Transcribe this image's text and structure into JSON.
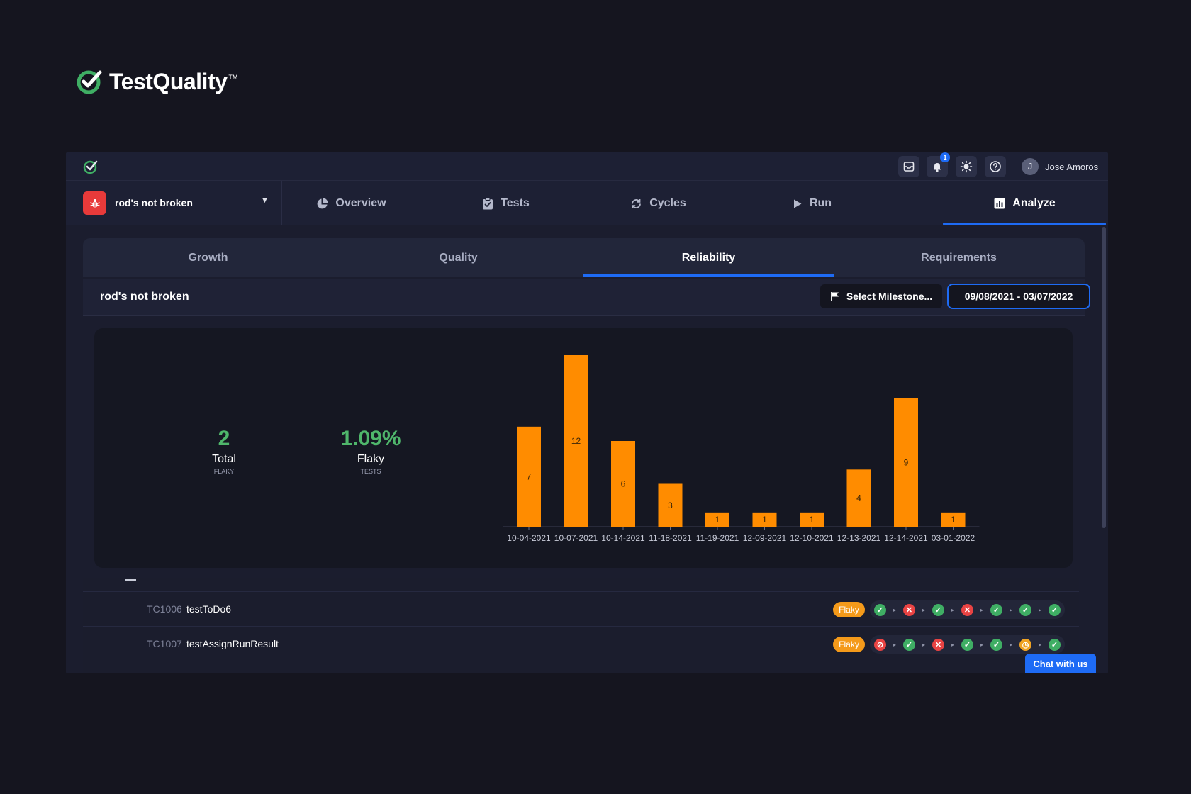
{
  "brand": {
    "name": "TestQuality",
    "tm": "TM",
    "icon": "testquality-check-logo",
    "accent": "#3fae64"
  },
  "topbar": {
    "icons": [
      "inbox-icon",
      "bell-icon",
      "sun-icon",
      "help-icon"
    ],
    "notification_count": "1",
    "user_initial": "J",
    "user_name": "Jose Amoros"
  },
  "project": {
    "name": "rod's not broken",
    "badge_color": "#e83a3a",
    "icon": "bug-icon"
  },
  "nav": {
    "tabs": [
      {
        "label": "Overview",
        "icon": "pie-chart-icon"
      },
      {
        "label": "Tests",
        "icon": "clipboard-check-icon"
      },
      {
        "label": "Cycles",
        "icon": "cycle-icon"
      },
      {
        "label": "Run",
        "icon": "play-icon"
      },
      {
        "label": "Analyze",
        "icon": "bar-chart-icon"
      }
    ],
    "active": "Analyze"
  },
  "subtabs": {
    "items": [
      "Growth",
      "Quality",
      "Reliability",
      "Requirements"
    ],
    "active": "Reliability"
  },
  "toolbar": {
    "title": "rod's not broken",
    "milestone_label": "Select Milestone...",
    "date_range": "09/08/2021 - 03/07/2022"
  },
  "kpis": [
    {
      "value": "2",
      "label": "Total",
      "sub": "FLAKY"
    },
    {
      "value": "1.09%",
      "label": "Flaky",
      "sub": "TESTS"
    }
  ],
  "chart_data": {
    "type": "bar",
    "categories": [
      "10-04-2021",
      "10-07-2021",
      "10-14-2021",
      "11-18-2021",
      "11-19-2021",
      "12-09-2021",
      "12-10-2021",
      "12-13-2021",
      "12-14-2021",
      "03-01-2022"
    ],
    "values": [
      7,
      12,
      6,
      3,
      1,
      1,
      1,
      4,
      9,
      1
    ],
    "bar_color": "#ff8c00",
    "data_labels": true,
    "ylim": [
      0,
      12
    ],
    "grid": false,
    "title": "",
    "xlabel": "",
    "ylabel": ""
  },
  "tests": [
    {
      "id": "TC1006",
      "name": "testToDo6",
      "badge": "Flaky",
      "history": [
        "pass",
        "fail",
        "pass",
        "fail",
        "pass",
        "pass",
        "pass"
      ]
    },
    {
      "id": "TC1007",
      "name": "testAssignRunResult",
      "badge": "Flaky",
      "history": [
        "blocked",
        "pass",
        "fail",
        "pass",
        "pass",
        "pending",
        "pass"
      ]
    }
  ],
  "chat": {
    "label": "Chat with us"
  }
}
